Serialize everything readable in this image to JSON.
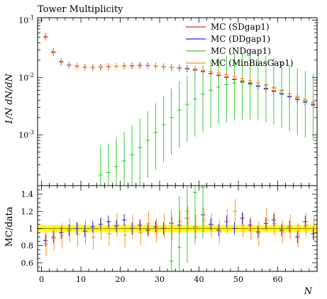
{
  "title": "Tower Multiplicity",
  "top_ylabel": "1/N dN/dN",
  "bottom_ylabel": "MC/data",
  "xlabel": "N",
  "legend": [
    "MC (SDgap1)",
    "MC (DDgap1)",
    "MC (NDgap1)",
    "MC (MinBiasGap1)"
  ],
  "colors": {
    "SDgap1": "#d62728",
    "DDgap1": "#1f1fff",
    "NDgap1": "#33cc33",
    "MinBiasGap1": "#ff8c1a",
    "data": "#000000",
    "band": "#ffff00"
  },
  "chart_data": [
    {
      "type": "line",
      "title": "Tower Multiplicity",
      "ylabel": "1/N dN/dN",
      "yscale": "log",
      "xlim": [
        -1,
        70
      ],
      "ylim": [
        0.00013,
        0.11
      ],
      "ytick_labels": [
        "10^-3",
        "10^-2",
        "10^-1"
      ],
      "x": [
        1,
        3,
        5,
        7,
        9,
        11,
        13,
        15,
        17,
        19,
        21,
        23,
        25,
        27,
        29,
        31,
        33,
        35,
        37,
        39,
        41,
        43,
        45,
        47,
        49,
        51,
        53,
        55,
        57,
        59,
        61,
        63,
        65,
        67,
        69
      ],
      "series": [
        {
          "name": "MC (SDgap1)",
          "values": [
            0.052,
            0.028,
            0.019,
            0.0165,
            0.0158,
            0.0152,
            0.015,
            0.0152,
            0.0155,
            0.0156,
            0.0158,
            0.0158,
            0.016,
            0.016,
            0.0156,
            0.0152,
            0.015,
            0.0147,
            0.0142,
            0.0136,
            0.0128,
            0.0118,
            0.011,
            0.0102,
            0.0094,
            0.0087,
            0.0079,
            0.0072,
            0.0065,
            0.0059,
            0.0053,
            0.0047,
            0.0042,
            0.0038,
            0.0034
          ]
        },
        {
          "name": "MC (DDgap1)",
          "values": [
            0.05,
            0.027,
            0.0185,
            0.0163,
            0.0156,
            0.015,
            0.0149,
            0.0151,
            0.0154,
            0.0157,
            0.016,
            0.0161,
            0.0163,
            0.0162,
            0.0158,
            0.0154,
            0.015,
            0.0146,
            0.0141,
            0.0134,
            0.0126,
            0.0117,
            0.0108,
            0.01,
            0.0092,
            0.0085,
            0.0077,
            0.007,
            0.0063,
            0.0057,
            0.0051,
            0.0046,
            0.0041,
            0.0037,
            0.0033
          ]
        },
        {
          "name": "MC (NDgap1)",
          "values": [
            null,
            null,
            null,
            null,
            null,
            null,
            null,
            0.0002,
            0.00022,
            0.00028,
            0.00035,
            0.00045,
            0.0006,
            0.0008,
            0.0011,
            0.0015,
            0.002,
            0.0027,
            0.0034,
            0.0042,
            0.0051,
            0.006,
            0.0068,
            0.0075,
            0.008,
            0.0082,
            0.0082,
            0.008,
            0.0075,
            0.0068,
            0.006,
            0.0052,
            0.0045,
            0.004,
            0.0036
          ]
        },
        {
          "name": "MC (MinBiasGap1)",
          "values": [
            0.05,
            0.027,
            0.0185,
            0.0162,
            0.0155,
            0.015,
            0.0149,
            0.015,
            0.0153,
            0.0156,
            0.0158,
            0.0159,
            0.016,
            0.016,
            0.0157,
            0.0153,
            0.0151,
            0.0149,
            0.0146,
            0.0141,
            0.0135,
            0.0127,
            0.012,
            0.0112,
            0.0104,
            0.0096,
            0.0088,
            0.008,
            0.0072,
            0.0065,
            0.0058,
            0.0052,
            0.0047,
            0.0042,
            0.0038
          ]
        }
      ]
    },
    {
      "type": "line",
      "ylabel": "MC/data",
      "xlabel": "N",
      "xlim": [
        -1,
        70
      ],
      "ylim": [
        0.5,
        1.5
      ],
      "yticks": [
        0.6,
        0.8,
        1,
        1.2,
        1.4
      ],
      "xticks": [
        0,
        10,
        20,
        30,
        40,
        50,
        60
      ],
      "x": [
        1,
        3,
        5,
        7,
        9,
        11,
        13,
        15,
        17,
        19,
        21,
        23,
        25,
        27,
        29,
        31,
        33,
        35,
        37,
        39,
        41,
        43,
        45,
        47,
        49,
        51,
        53,
        55,
        57,
        59,
        61,
        63,
        65,
        67,
        69
      ],
      "band": [
        0.96,
        1.04
      ],
      "series": [
        {
          "name": "MC (DDgap1)",
          "values": [
            0.86,
            0.9,
            0.95,
            0.98,
            1.0,
            0.97,
            1.02,
            1.05,
            1.08,
            1.03,
            1.1,
            1.0,
            1.04,
            0.98,
            1.02,
            1.0,
            1.06,
            1.04,
            1.12,
            1.02,
            1.16,
            1.05,
            0.98,
            1.08,
            1.0,
            1.12,
            1.04,
            0.96,
            1.06,
            1.1,
            0.98,
            1.02,
            0.9,
            1.08,
            0.94
          ]
        },
        {
          "name": "MC (NDgap1)",
          "values": [
            null,
            null,
            null,
            null,
            null,
            null,
            null,
            null,
            null,
            null,
            null,
            null,
            null,
            null,
            null,
            null,
            0.62,
            0.78,
            1.2,
            1.42,
            1.48,
            null,
            null,
            null,
            null,
            null,
            null,
            null,
            null,
            null,
            null,
            null,
            null,
            null,
            null
          ]
        },
        {
          "name": "MC (MinBiasGap1)",
          "values": [
            0.82,
            0.88,
            0.92,
            0.98,
            0.93,
            0.96,
            0.9,
            1.0,
            0.94,
            1.04,
            0.92,
            1.02,
            0.95,
            1.06,
            0.98,
            1.03,
            1.0,
            1.08,
            1.12,
            1.02,
            1.1,
            1.04,
            0.96,
            1.08,
            1.2,
            1.04,
            1.0,
            0.94,
            1.1,
            1.06,
            0.96,
            1.02,
            0.92,
            1.04,
            1.0
          ]
        }
      ]
    }
  ]
}
